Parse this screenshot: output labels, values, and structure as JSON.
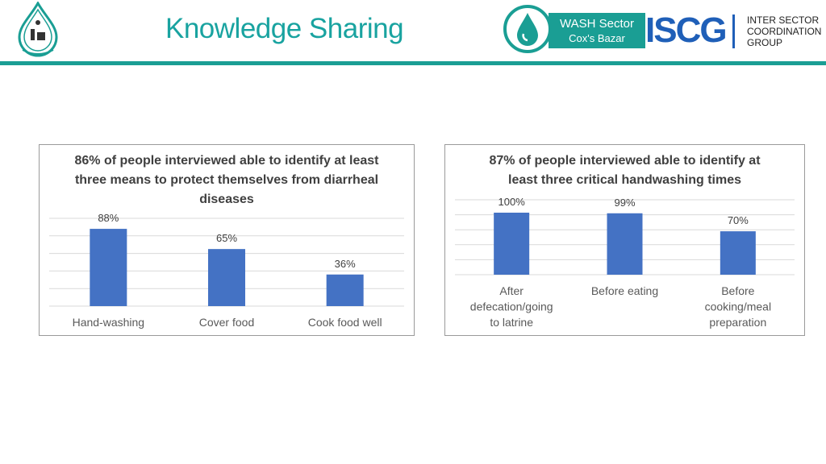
{
  "header": {
    "title": "Knowledge Sharing",
    "wash_line1": "WASH Sector",
    "wash_line2": "Cox's Bazar",
    "iscg_acronym": "ISCG",
    "iscg_line1": "INTER SECTOR",
    "iscg_line2": "COORDINATION",
    "iscg_line3": "GROUP"
  },
  "colors": {
    "bar": "#4472c4",
    "teal": "#1a9e94",
    "text": "#595959"
  },
  "chart_data": [
    {
      "type": "bar",
      "title": "86% of people interviewed able to identify at least three means to protect themselves from diarrheal diseases",
      "categories": [
        "Hand-washing",
        "Cover food",
        "Cook food well"
      ],
      "values": [
        88,
        65,
        36
      ],
      "data_labels": [
        "88%",
        "65%",
        "36%"
      ],
      "ylim": [
        0,
        100
      ],
      "grid": true
    },
    {
      "type": "bar",
      "title": "87% of people interviewed able to identify at least three critical handwashing times",
      "categories": [
        "After defecation/going to latrine",
        "Before eating",
        "Before cooking/meal preparation"
      ],
      "values": [
        100,
        99,
        70
      ],
      "data_labels": [
        "100%",
        "99%",
        "70%"
      ],
      "ylim": [
        0,
        100
      ],
      "grid": true
    }
  ]
}
